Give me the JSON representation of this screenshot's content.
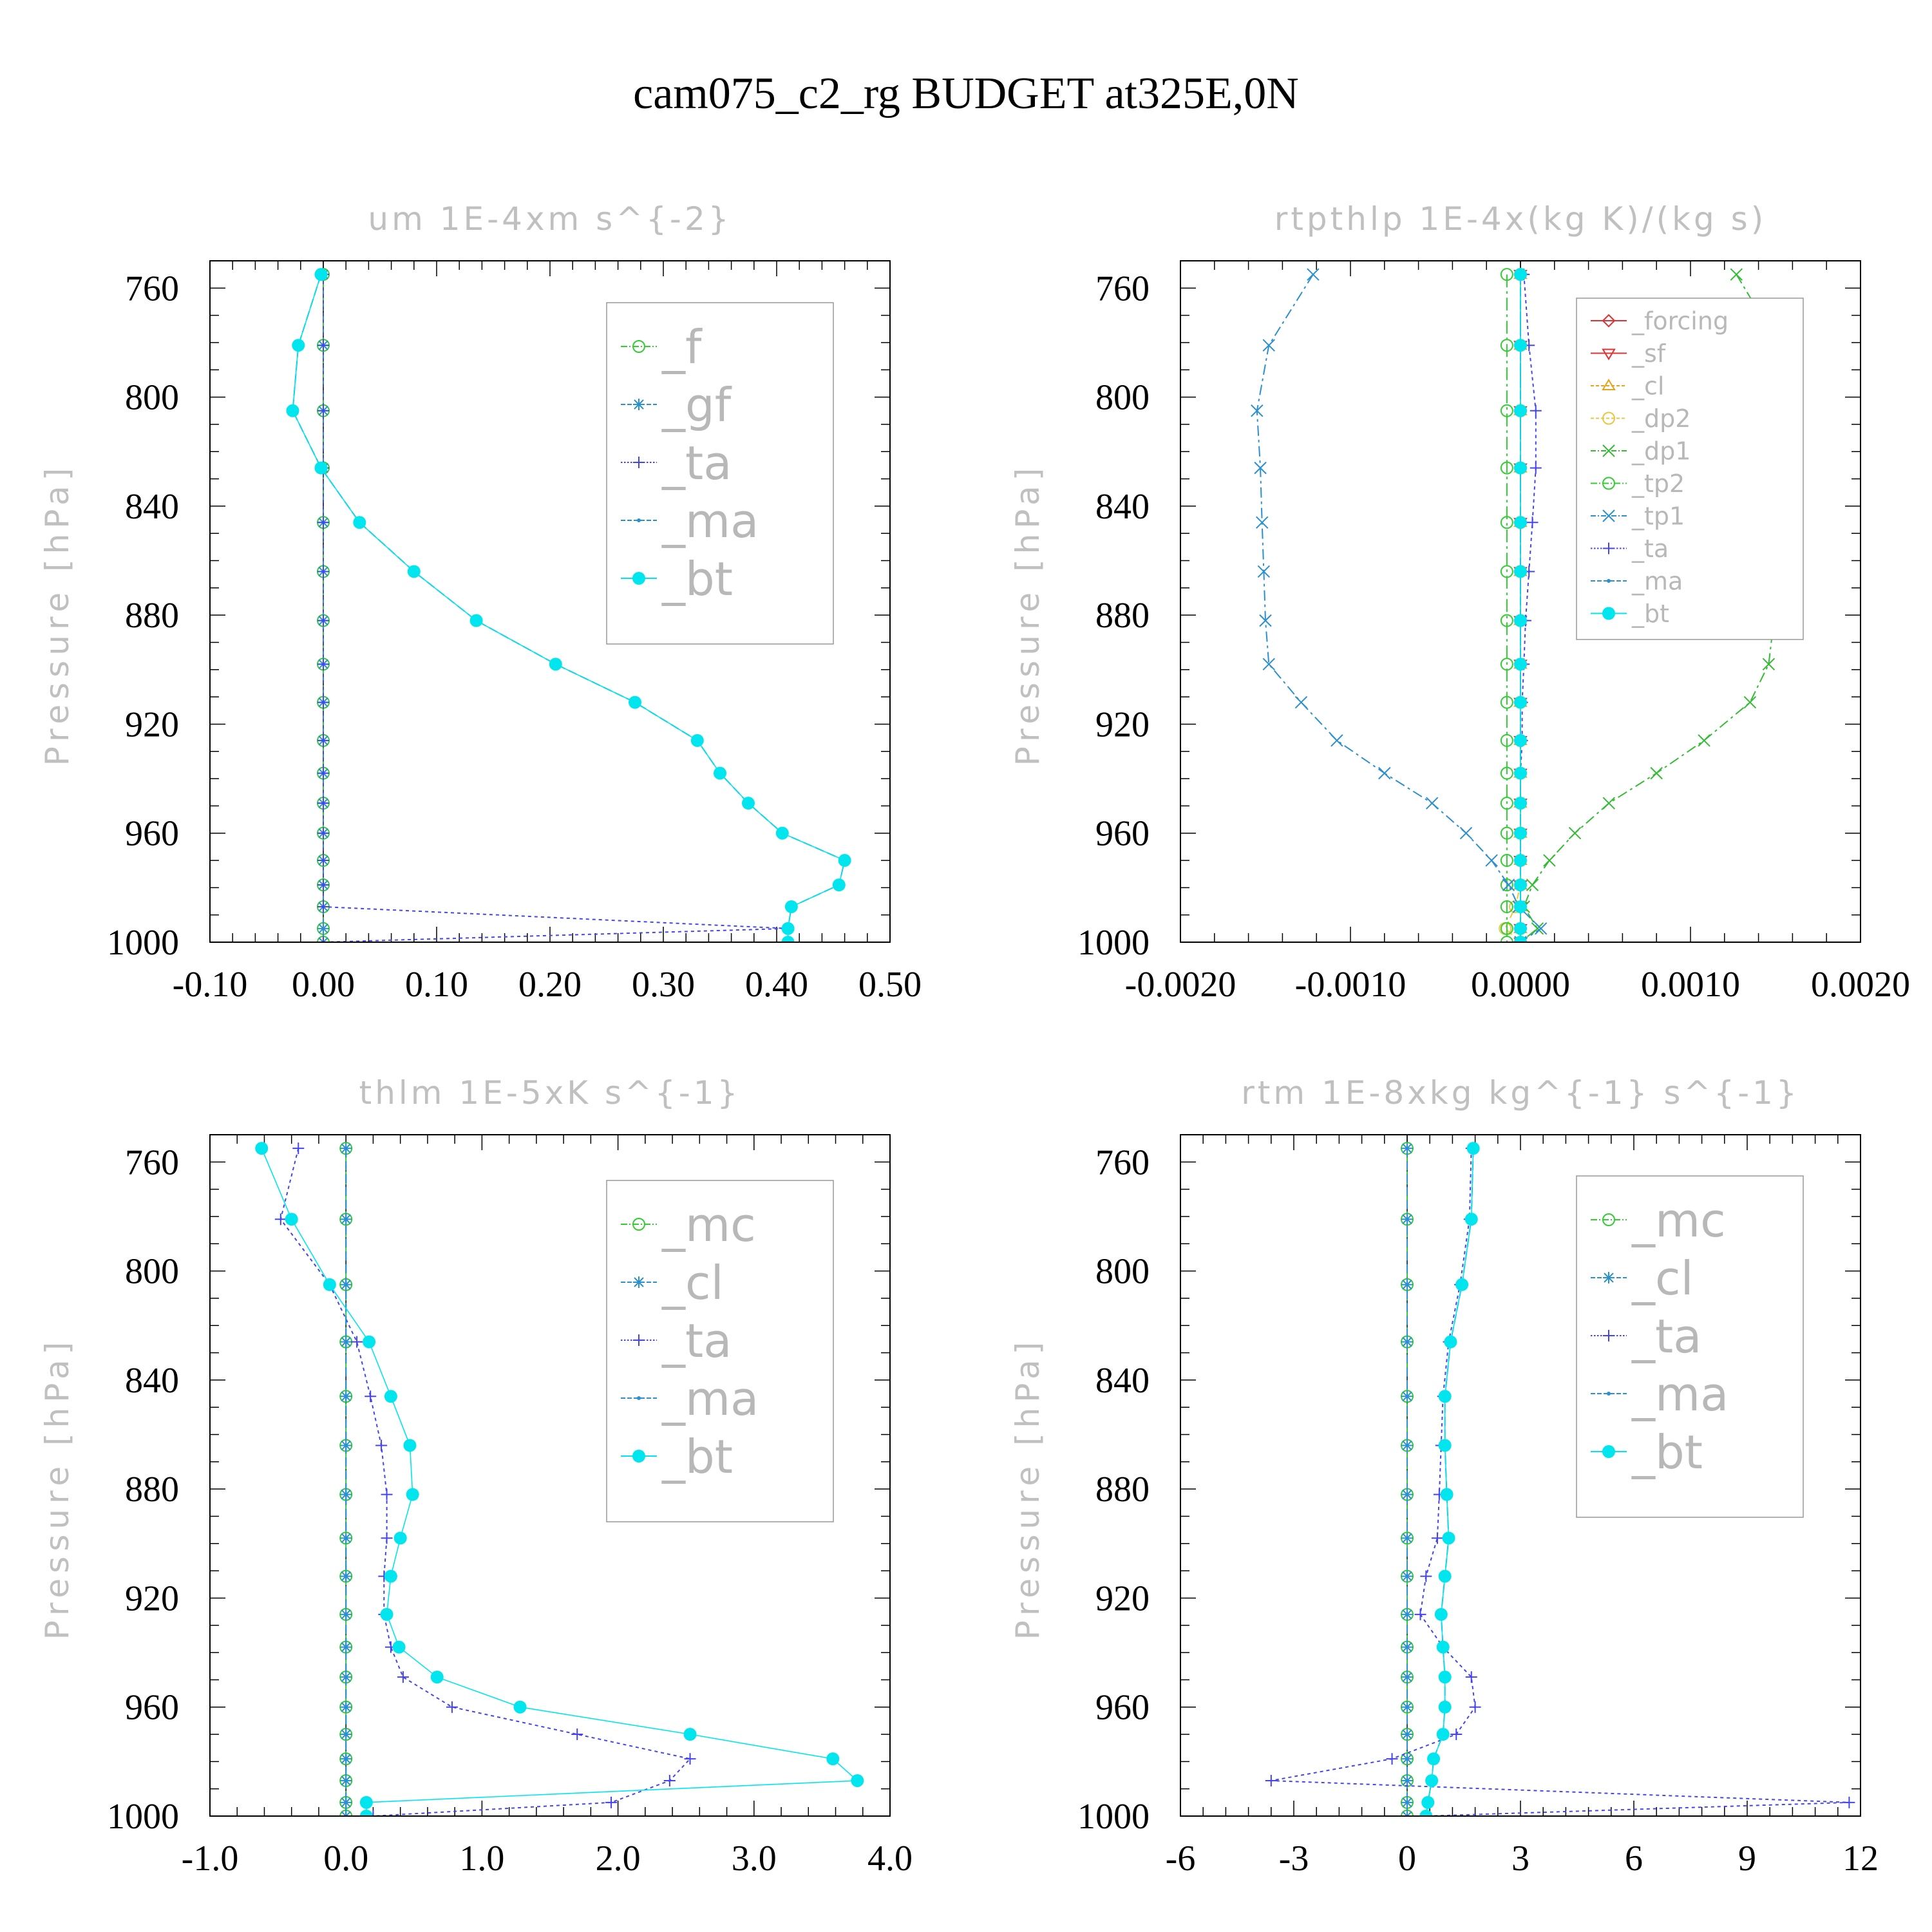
{
  "title": "cam075_c2_rg  BUDGET at325E,0N",
  "colors": {
    "axis": "#000000",
    "label_gray": "#c0c0c0"
  },
  "chart_data": [
    {
      "type": "line",
      "title": "um  1E-4xm s^{-2}",
      "ylabel": "Pressure [hPa]",
      "xlabel": "",
      "xlim": [
        -0.1,
        0.5
      ],
      "ylim": [
        1000,
        750
      ],
      "xticks": [
        -0.1,
        0.0,
        0.1,
        0.2,
        0.3,
        0.4,
        0.5
      ],
      "xtick_labels": [
        "-0.10",
        "0.00",
        "0.10",
        "0.20",
        "0.30",
        "0.40",
        "0.50"
      ],
      "yticks": [
        760,
        800,
        840,
        880,
        920,
        960,
        1000
      ],
      "ytick_labels": [
        "760",
        "800",
        "840",
        "880",
        "920",
        "960",
        "1000"
      ],
      "pressure": [
        755,
        781,
        805,
        826,
        846,
        864,
        882,
        898,
        912,
        926,
        938,
        949,
        960,
        970,
        979,
        987,
        995,
        1000
      ],
      "series": [
        {
          "name": "_f",
          "color": "#33cc33",
          "dash": "20,6,4,6",
          "marker": "circle-open",
          "values": [
            0,
            0,
            0,
            0,
            0,
            0,
            0,
            0,
            0,
            0,
            0,
            0,
            0,
            0,
            0,
            0,
            0,
            0
          ]
        },
        {
          "name": "_gf",
          "color": "#2a90d0",
          "dash": "14,6",
          "marker": "asterisk",
          "values": [
            0,
            0,
            0,
            0,
            0,
            0,
            0,
            0,
            0,
            0,
            0,
            0,
            0,
            0,
            0,
            0,
            0,
            0
          ]
        },
        {
          "name": "_ta",
          "color": "#4444ee",
          "dash": "5,5",
          "marker": "plus",
          "values": [
            0,
            0,
            0,
            0,
            0,
            0,
            0,
            0,
            0,
            0,
            0,
            0,
            0,
            0,
            0,
            0,
            0.41,
            0
          ]
        },
        {
          "name": "_ma",
          "color": "#2a90d0",
          "dash": "14,6",
          "marker": "dot",
          "values": [
            -0.002,
            -0.022,
            -0.027,
            -0.002,
            0.032,
            0.08,
            0.135,
            0.205,
            0.275,
            0.33,
            0.35,
            0.375,
            0.405,
            0.46,
            0.455,
            0.413,
            0.41,
            0.41
          ]
        },
        {
          "name": "_bt",
          "color": "#00e5ee",
          "dash": "",
          "marker": "dot-filled",
          "values": [
            -0.002,
            -0.022,
            -0.027,
            -0.002,
            0.032,
            0.08,
            0.135,
            0.205,
            0.275,
            0.33,
            0.35,
            0.375,
            0.405,
            0.46,
            0.455,
            0.413,
            0.41,
            0.41
          ]
        }
      ]
    },
    {
      "type": "line",
      "title": "rtpthlp  1E-4x(kg K)/(kg s)",
      "ylabel": "Pressure [hPa]",
      "xlabel": "",
      "xlim": [
        -0.002,
        0.002
      ],
      "ylim": [
        1000,
        750
      ],
      "xticks": [
        -0.002,
        -0.001,
        0.0,
        0.001,
        0.002
      ],
      "xtick_labels": [
        "-0.0020",
        "-0.0010",
        "0.0000",
        "0.0010",
        "0.0020"
      ],
      "yticks": [
        760,
        800,
        840,
        880,
        920,
        960,
        1000
      ],
      "ytick_labels": [
        "760",
        "800",
        "840",
        "880",
        "920",
        "960",
        "1000"
      ],
      "pressure": [
        755,
        781,
        805,
        826,
        846,
        864,
        882,
        898,
        912,
        926,
        938,
        949,
        960,
        970,
        979,
        987,
        995,
        1000
      ],
      "series": [
        {
          "name": "_forcing",
          "color": "#e03030",
          "dash": "",
          "marker": "diamond-open",
          "values": [
            0,
            0,
            0,
            0,
            0,
            0,
            0,
            0,
            0,
            0,
            0,
            0,
            0,
            0,
            0,
            0,
            0,
            0
          ]
        },
        {
          "name": "_sf",
          "color": "#e03030",
          "dash": "",
          "marker": "triangle-down-open",
          "values": [
            0,
            0,
            0,
            0,
            0,
            0,
            0,
            0,
            0,
            0,
            0,
            0,
            0,
            0,
            0,
            0,
            0,
            0
          ]
        },
        {
          "name": "_cl",
          "color": "#e8a317",
          "dash": "10,6",
          "marker": "triangle-up-open",
          "values": [
            0,
            0,
            0,
            0,
            0,
            0,
            0,
            0,
            0,
            0,
            0,
            0,
            0,
            0,
            0,
            0,
            0,
            0
          ]
        },
        {
          "name": "_dp2",
          "color": "#e8c840",
          "dash": "10,6",
          "marker": "circle-open",
          "values": [
            0,
            0,
            0,
            0,
            0,
            0,
            0,
            0,
            0,
            0,
            0,
            0,
            0,
            0,
            0,
            -3e-05,
            -9e-05,
            0
          ]
        },
        {
          "name": "_dp1",
          "color": "#33bb33",
          "dash": "16,6,4,6",
          "marker": "x",
          "values": [
            0.00127,
            0.00152,
            0.00156,
            0.00152,
            0.00151,
            0.0015,
            0.00149,
            0.00146,
            0.00135,
            0.00108,
            0.0008,
            0.00052,
            0.00032,
            0.00017,
            7e-05,
            2e-05,
            0.0001,
            0
          ]
        },
        {
          "name": "_tp2",
          "color": "#33cc33",
          "dash": "20,6,4,6",
          "marker": "circle-open",
          "values": [
            -8e-05,
            -8e-05,
            -8e-05,
            -8e-05,
            -8e-05,
            -8e-05,
            -8e-05,
            -8e-05,
            -8e-05,
            -8e-05,
            -8e-05,
            -8e-05,
            -8e-05,
            -8e-05,
            -8e-05,
            -8e-05,
            -8e-05,
            -8e-05
          ]
        },
        {
          "name": "_tp1",
          "color": "#2a90d0",
          "dash": "16,6,4,6",
          "marker": "x",
          "values": [
            -0.00122,
            -0.00148,
            -0.00155,
            -0.00153,
            -0.00152,
            -0.00151,
            -0.0015,
            -0.00148,
            -0.00129,
            -0.00108,
            -0.0008,
            -0.00052,
            -0.00032,
            -0.00017,
            -7e-05,
            -1e-05,
            0.00012,
            0
          ]
        },
        {
          "name": "_ta",
          "color": "#4444ee",
          "dash": "5,5",
          "marker": "plus",
          "values": [
            2e-05,
            5e-05,
            9e-05,
            9e-05,
            7e-05,
            5e-05,
            3e-05,
            2e-05,
            1e-05,
            1e-05,
            0,
            0,
            0,
            0,
            0,
            0,
            0,
            0
          ]
        },
        {
          "name": "_ma",
          "color": "#2a90d0",
          "dash": "14,6",
          "marker": "dot",
          "values": [
            0,
            0,
            0,
            0,
            0,
            0,
            0,
            0,
            0,
            0,
            0,
            0,
            0,
            0,
            0,
            0,
            0,
            0
          ]
        },
        {
          "name": "_bt",
          "color": "#00e5ee",
          "dash": "",
          "marker": "dot-filled",
          "values": [
            0,
            0,
            0,
            0,
            0,
            0,
            0,
            0,
            0,
            0,
            0,
            0,
            0,
            0,
            0,
            0,
            0,
            0
          ]
        }
      ]
    },
    {
      "type": "line",
      "title": "thlm  1E-5xK s^{-1}",
      "ylabel": "Pressure [hPa]",
      "xlabel": "",
      "xlim": [
        -1.0,
        4.0
      ],
      "ylim": [
        1000,
        750
      ],
      "xticks": [
        -1,
        0,
        1,
        2,
        3,
        4
      ],
      "xtick_labels": [
        "-1.0",
        "0.0",
        "1.0",
        "2.0",
        "3.0",
        "4.0"
      ],
      "yticks": [
        760,
        800,
        840,
        880,
        920,
        960,
        1000
      ],
      "ytick_labels": [
        "760",
        "800",
        "840",
        "880",
        "920",
        "960",
        "1000"
      ],
      "pressure": [
        755,
        781,
        805,
        826,
        846,
        864,
        882,
        898,
        912,
        926,
        938,
        949,
        960,
        970,
        979,
        987,
        995,
        1000
      ],
      "series": [
        {
          "name": "_mc",
          "color": "#33cc33",
          "dash": "20,6,4,6",
          "marker": "circle-open",
          "values": [
            0,
            0,
            0,
            0,
            0,
            0,
            0,
            0,
            0,
            0,
            0,
            0,
            0,
            0,
            0,
            0,
            0,
            0
          ]
        },
        {
          "name": "_cl",
          "color": "#2a90d0",
          "dash": "14,6",
          "marker": "asterisk",
          "values": [
            0,
            0,
            0,
            0,
            0,
            0,
            0,
            0,
            0,
            0,
            0,
            0,
            0,
            0,
            0,
            0,
            0,
            0
          ]
        },
        {
          "name": "_ta",
          "color": "#4444ee",
          "dash": "5,5",
          "marker": "plus",
          "values": [
            -0.35,
            -0.48,
            -0.12,
            0.08,
            0.18,
            0.26,
            0.3,
            0.3,
            0.28,
            0.28,
            0.33,
            0.42,
            0.78,
            1.7,
            2.53,
            2.38,
            1.95,
            0.2
          ]
        },
        {
          "name": "_ma",
          "color": "#2a90d0",
          "dash": "14,6",
          "marker": "dot",
          "values": [
            0,
            0,
            0,
            0,
            0,
            0,
            0,
            0,
            0,
            0,
            0,
            0,
            0,
            0,
            0,
            0,
            0,
            0
          ]
        },
        {
          "name": "_bt",
          "color": "#00e5ee",
          "dash": "",
          "marker": "dot-filled",
          "values": [
            -0.62,
            -0.4,
            -0.12,
            0.17,
            0.33,
            0.47,
            0.49,
            0.4,
            0.33,
            0.3,
            0.39,
            0.67,
            1.28,
            2.53,
            3.58,
            3.76,
            0.15,
            0.15
          ]
        }
      ]
    },
    {
      "type": "line",
      "title": "rtm  1E-8xkg kg^{-1} s^{-1}",
      "ylabel": "Pressure [hPa]",
      "xlabel": "",
      "xlim": [
        -6,
        12
      ],
      "ylim": [
        1000,
        750
      ],
      "xticks": [
        -6,
        -3,
        0,
        3,
        6,
        9,
        12
      ],
      "xtick_labels": [
        "-6",
        "-3",
        "0",
        "3",
        "6",
        "9",
        "12"
      ],
      "yticks": [
        760,
        800,
        840,
        880,
        920,
        960,
        1000
      ],
      "ytick_labels": [
        "760",
        "800",
        "840",
        "880",
        "920",
        "960",
        "1000"
      ],
      "pressure": [
        755,
        781,
        805,
        826,
        846,
        864,
        882,
        898,
        912,
        926,
        938,
        949,
        960,
        970,
        979,
        987,
        995,
        1000
      ],
      "series": [
        {
          "name": "_mc",
          "color": "#33cc33",
          "dash": "20,6,4,6",
          "marker": "circle-open",
          "values": [
            0,
            0,
            0,
            0,
            0,
            0,
            0,
            0,
            0,
            0,
            0,
            0,
            0,
            0,
            0,
            0,
            0,
            0
          ]
        },
        {
          "name": "_cl",
          "color": "#2a90d0",
          "dash": "14,6",
          "marker": "asterisk",
          "values": [
            0,
            0,
            0,
            0,
            0,
            0,
            0,
            0,
            0,
            0,
            0,
            0,
            0,
            0,
            0,
            0,
            0,
            0
          ]
        },
        {
          "name": "_ta",
          "color": "#4444ee",
          "dash": "5,5",
          "marker": "plus",
          "values": [
            1.7,
            1.65,
            1.4,
            1.1,
            0.95,
            0.9,
            0.85,
            0.8,
            0.5,
            0.35,
            0.95,
            1.7,
            1.8,
            1.3,
            -0.4,
            -3.6,
            11.7,
            0.5
          ]
        },
        {
          "name": "_ma",
          "color": "#2a90d0",
          "dash": "14,6",
          "marker": "dot",
          "values": [
            1.75,
            1.7,
            1.45,
            1.15,
            1.0,
            1.0,
            1.05,
            1.1,
            1.0,
            0.9,
            0.95,
            1.0,
            1.0,
            0.95,
            0.7,
            0.65,
            0.55,
            0.5
          ]
        },
        {
          "name": "_bt",
          "color": "#00e5ee",
          "dash": "",
          "marker": "dot-filled",
          "values": [
            1.75,
            1.7,
            1.45,
            1.15,
            1.0,
            1.0,
            1.05,
            1.1,
            1.0,
            0.9,
            0.95,
            1.0,
            1.0,
            0.95,
            0.7,
            0.65,
            0.55,
            0.5
          ]
        }
      ]
    }
  ]
}
